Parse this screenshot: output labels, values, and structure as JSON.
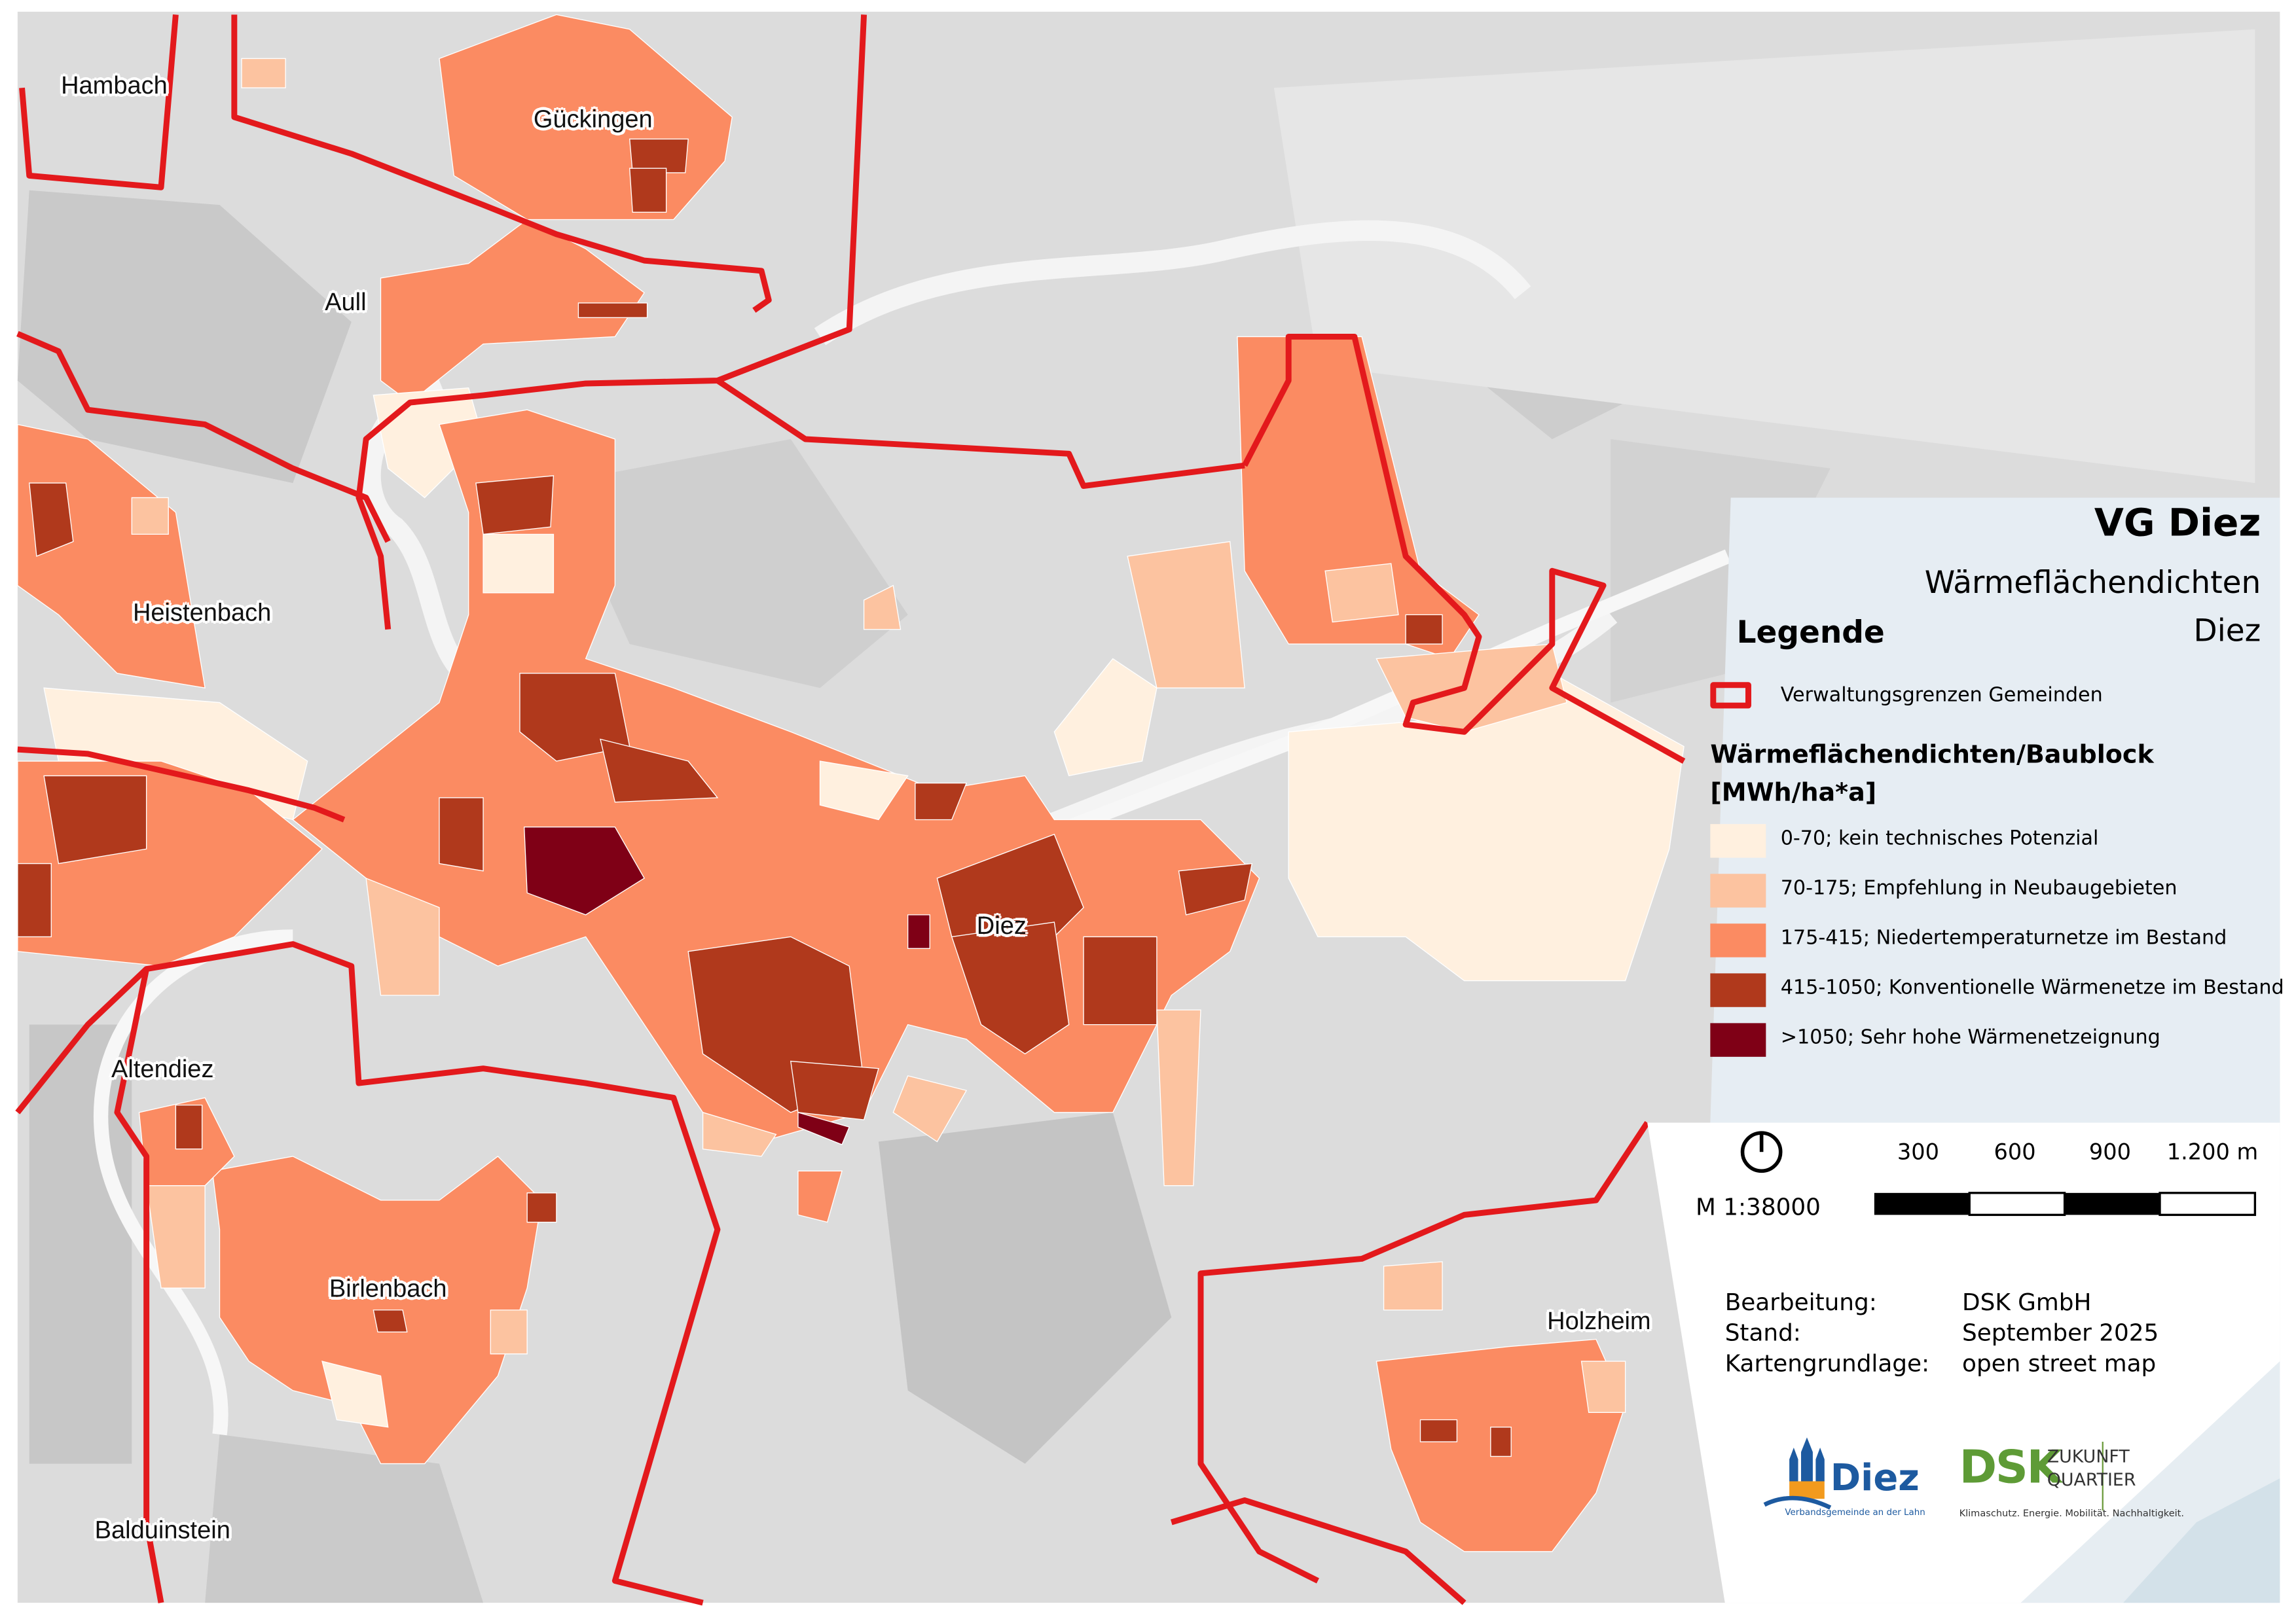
{
  "title": "VG Diez",
  "subtitle": "Wärmeflächendichten",
  "area": "Diez",
  "legend": {
    "heading": "Legende",
    "boundary": {
      "label": "Verwaltungsgrenzen Gemeinden",
      "color": "#e3191c"
    },
    "density_heading_1": "Wärmeflächendichten/Baublock",
    "density_heading_2": "[MWh/ha*a]",
    "classes": [
      {
        "label": "0-70; kein technisches Potenzial",
        "color": "#fff0df"
      },
      {
        "label": "70-175; Empfehlung in Neubaugebieten",
        "color": "#fcc3a0"
      },
      {
        "label": "175-415; Niedertemperaturnetze im Bestand",
        "color": "#fb8b62"
      },
      {
        "label": "415-1050; Konventionelle Wärmenetze im Bestand",
        "color": "#b0391c"
      },
      {
        "label": ">1050; Sehr hohe Wärmenetzeignung",
        "color": "#7f0016"
      }
    ]
  },
  "places": [
    "Hambach",
    "Gückingen",
    "Aull",
    "Heistenbach",
    "Altendiez",
    "Birlenbach",
    "Balduinstein",
    "Diez",
    "Holzheim"
  ],
  "scale": {
    "ratio": "M 1:38000",
    "ticks": [
      "300",
      "600",
      "900",
      "1.200 m"
    ],
    "north_icon": "north-arrow-icon"
  },
  "credits": [
    {
      "key": "Bearbeitung:",
      "value": "DSK GmbH"
    },
    {
      "key": "Stand:",
      "value": "September 2025"
    },
    {
      "key": "Kartengrundlage:",
      "value": "open street map"
    }
  ],
  "logos": {
    "diez": {
      "name": "Diez",
      "tagline": "Verbandsgemeinde an der Lahn"
    },
    "dsk": {
      "name": "DSK",
      "line1": "ZUKUNFT",
      "line2": "QUARTIER",
      "tagline": "Klimaschutz. Energie. Mobilität. Nachhaltigkeit."
    }
  }
}
